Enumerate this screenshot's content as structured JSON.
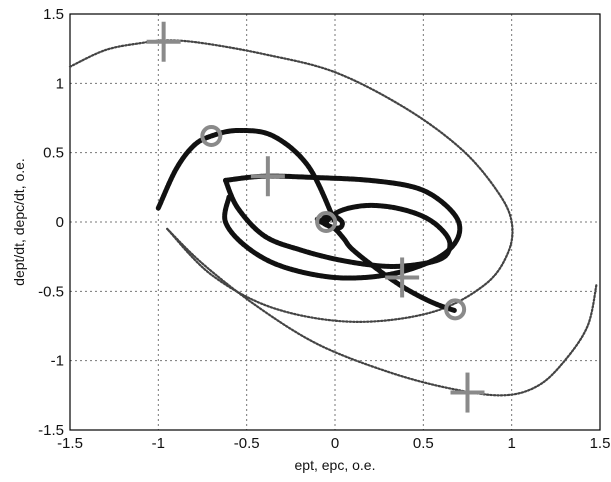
{
  "chart_data": {
    "type": "scatter",
    "xlabel": "ept, epc,  o.e.",
    "ylabel": "dept/dt, depc/dt, o.e.",
    "xlim": [
      -1.5,
      1.5
    ],
    "ylim": [
      -1.5,
      1.5
    ],
    "xticks": [
      "-1.5",
      "-1",
      "-0.5",
      "0",
      "0.5",
      "1",
      "1.5"
    ],
    "yticks": [
      "1.5",
      "1",
      "0.5",
      "0",
      "-0.5",
      "-1",
      "-1.5"
    ],
    "xtick_values": [
      -1.5,
      -1,
      -0.5,
      0,
      0.5,
      1,
      1.5
    ],
    "ytick_values": [
      1.5,
      1,
      0.5,
      0,
      -0.5,
      -1,
      -1.5
    ],
    "grid": true,
    "series": [
      {
        "marker": "dots",
        "color": "#444444",
        "style": "thin",
        "x": [
          -1.5,
          -1.3,
          -1.1,
          -0.95,
          -0.75,
          -0.4,
          0.0,
          0.4,
          0.72,
          0.92,
          1.0,
          0.98,
          0.85,
          0.55,
          0.1,
          -0.35,
          -0.7,
          -0.95
        ],
        "y": [
          1.12,
          1.24,
          1.29,
          1.31,
          1.29,
          1.21,
          1.08,
          0.82,
          0.52,
          0.22,
          0.0,
          -0.22,
          -0.45,
          -0.65,
          -0.72,
          -0.62,
          -0.38,
          -0.05
        ]
      },
      {
        "marker": "dots",
        "color": "#444444",
        "style": "thin",
        "x": [
          -0.95,
          -0.75,
          -0.45,
          -0.1,
          0.3,
          0.65,
          0.95,
          1.15,
          1.3,
          1.43,
          1.48
        ],
        "y": [
          -0.05,
          -0.3,
          -0.6,
          -0.88,
          -1.08,
          -1.2,
          -1.25,
          -1.18,
          -1.0,
          -0.75,
          -0.45
        ]
      },
      {
        "marker": "dots",
        "color": "#111111",
        "style": "bold",
        "x": [
          -0.62,
          -0.4,
          -0.1,
          0.2,
          0.45,
          0.6,
          0.7,
          0.68,
          0.55,
          0.3,
          0.0,
          -0.3,
          -0.5,
          -0.62,
          -0.6
        ],
        "y": [
          0.3,
          0.33,
          0.32,
          0.3,
          0.25,
          0.15,
          0.0,
          -0.15,
          -0.28,
          -0.38,
          -0.4,
          -0.32,
          -0.18,
          0.0,
          0.18
        ]
      },
      {
        "marker": "dots",
        "color": "#111111",
        "style": "bold",
        "x": [
          -0.1,
          -0.05,
          0.0,
          0.05,
          0.1,
          0.25,
          0.4,
          0.55,
          0.68
        ],
        "y": [
          0.02,
          -0.02,
          -0.05,
          -0.12,
          -0.2,
          -0.35,
          -0.48,
          -0.58,
          -0.64
        ]
      },
      {
        "marker": "dots",
        "color": "#111111",
        "style": "bold",
        "x": [
          -0.05,
          0.0,
          0.08,
          0.2,
          0.35,
          0.5,
          0.6,
          0.65,
          0.62,
          0.5,
          0.3,
          0.05,
          -0.2,
          -0.4,
          -0.55,
          -0.62
        ],
        "y": [
          0.0,
          0.06,
          0.1,
          0.12,
          0.1,
          0.04,
          -0.05,
          -0.15,
          -0.25,
          -0.3,
          -0.32,
          -0.28,
          -0.2,
          -0.1,
          0.1,
          0.3
        ]
      },
      {
        "marker": "dots",
        "color": "#111111",
        "style": "bold",
        "x": [
          -1.0,
          -0.9,
          -0.8,
          -0.7,
          -0.55,
          -0.35,
          -0.15,
          0.0
        ],
        "y": [
          0.1,
          0.38,
          0.55,
          0.62,
          0.66,
          0.62,
          0.4,
          0.0
        ]
      },
      {
        "marker": "dots",
        "color": "#111111",
        "style": "bold",
        "x": [
          -0.08,
          -0.05,
          0.0,
          0.04,
          0.03,
          -0.02,
          -0.06
        ],
        "y": [
          0.0,
          0.04,
          0.04,
          0.0,
          -0.04,
          -0.04,
          0.0
        ]
      }
    ],
    "annotations": [
      {
        "marker": "plus",
        "x": -0.97,
        "y": 1.3
      },
      {
        "marker": "plus",
        "x": -0.38,
        "y": 0.33
      },
      {
        "marker": "plus",
        "x": 0.38,
        "y": -0.4
      },
      {
        "marker": "plus",
        "x": 0.75,
        "y": -1.23
      },
      {
        "marker": "circle",
        "x": -0.7,
        "y": 0.62
      },
      {
        "marker": "circle",
        "x": 0.68,
        "y": -0.63
      },
      {
        "marker": "circle",
        "x": -0.05,
        "y": 0.0
      }
    ],
    "marker_color": "#8a8a8a"
  }
}
